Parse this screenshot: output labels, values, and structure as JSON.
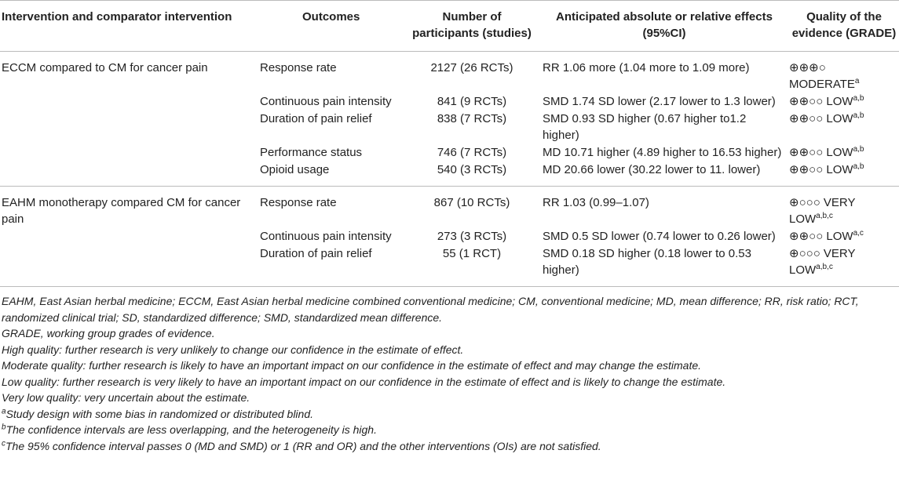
{
  "table": {
    "headers": [
      "Intervention and comparator intervention",
      "Outcomes",
      "Number of participants (studies)",
      "Anticipated absolute or relative effects (95%CI)",
      "Quality of the evidence (GRADE)"
    ],
    "groups": [
      {
        "intervention": "ECCM compared to CM for cancer pain",
        "rows": [
          {
            "outcome": "Response rate",
            "participants": "2127 (26 RCTs)",
            "effect": "RR 1.06 more (1.04 more to 1.09 more)",
            "quality": "⊕⊕⊕○ MODERATE",
            "quality_sup": "a"
          },
          {
            "outcome": "Continuous pain intensity",
            "participants": "841 (9 RCTs)",
            "effect": "SMD 1.74 SD lower (2.17 lower to 1.3 lower)",
            "quality": "⊕⊕○○ LOW",
            "quality_sup": "a,b"
          },
          {
            "outcome": "Duration of pain relief",
            "participants": "838 (7 RCTs)",
            "effect": "SMD 0.93 SD higher (0.67 higher to1.2 higher)",
            "quality": "⊕⊕○○ LOW",
            "quality_sup": "a,b"
          },
          {
            "outcome": "Performance status",
            "participants": "746 (7 RCTs)",
            "effect": "MD 10.71 higher (4.89 higher to 16.53 higher)",
            "quality": "⊕⊕○○ LOW",
            "quality_sup": "a,b"
          },
          {
            "outcome": "Opioid usage",
            "participants": "540 (3 RCTs)",
            "effect": "MD 20.66 lower (30.22 lower to 11. lower)",
            "quality": "⊕⊕○○ LOW",
            "quality_sup": "a,b"
          }
        ]
      },
      {
        "intervention": "EAHM monotherapy compared CM for cancer pain",
        "rows": [
          {
            "outcome": "Response rate",
            "participants": "867 (10 RCTs)",
            "effect": "RR 1.03 (0.99–1.07)",
            "quality": "⊕○○○ VERY LOW",
            "quality_sup": "a,b,c"
          },
          {
            "outcome": "Continuous pain intensity",
            "participants": "273 (3 RCTs)",
            "effect": "SMD 0.5 SD lower (0.74 lower to 0.26 lower)",
            "quality": "⊕⊕○○ LOW",
            "quality_sup": "a,c"
          },
          {
            "outcome": "Duration of pain relief",
            "participants": "55 (1 RCT)",
            "effect": "SMD 0.18 SD higher (0.18 lower to 0.53 higher)",
            "quality": "⊕○○○ VERY LOW",
            "quality_sup": "a,b,c"
          }
        ]
      }
    ]
  },
  "footnotes": [
    {
      "text": "EAHM, East Asian herbal medicine; ECCM, East Asian herbal medicine combined conventional medicine; CM, conventional medicine; MD, mean difference; RR, risk ratio; RCT, randomized clinical trial; SD, standardized difference; SMD, standardized mean difference."
    },
    {
      "text": "GRADE, working group grades of evidence."
    },
    {
      "text": "High quality: further research is very unlikely to change our confidence in the estimate of effect."
    },
    {
      "text": "Moderate quality: further research is likely to have an important impact on our confidence in the estimate of effect and may change the estimate."
    },
    {
      "text": "Low quality: further research is very likely to have an important impact on our confidence in the estimate of effect and is likely to change the estimate."
    },
    {
      "text": "Very low quality: very uncertain about the estimate."
    },
    {
      "mark": "a",
      "text": "Study design with some bias in randomized or distributed blind."
    },
    {
      "mark": "b",
      "text": "The confidence intervals are less overlapping, and the heterogeneity is high."
    },
    {
      "mark": "c",
      "text": "The 95% confidence interval passes 0 (MD and SMD) or 1 (RR and OR) and the other interventions (OIs) are not satisfied."
    }
  ]
}
